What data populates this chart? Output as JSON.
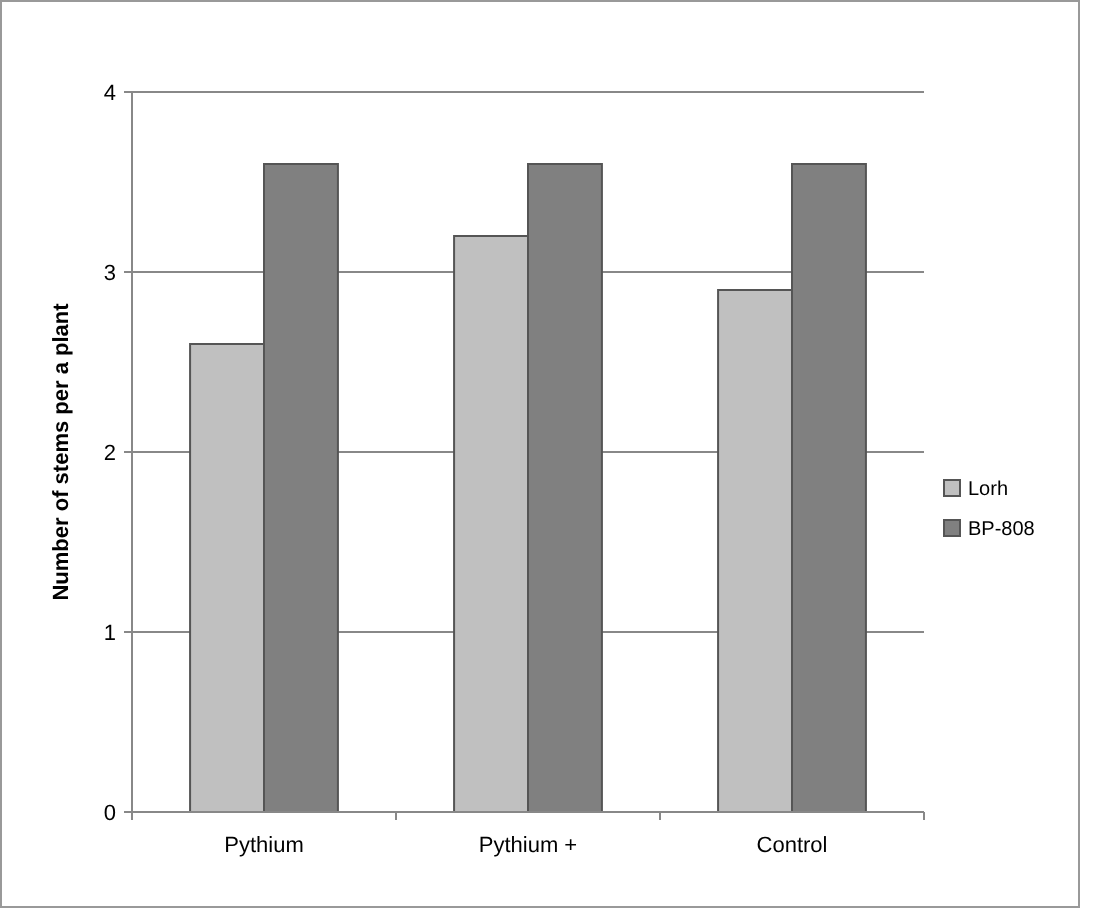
{
  "chart_data": {
    "type": "bar",
    "ylabel": "Number of stems per a plant",
    "categories": [
      "Pythium",
      "Pythium +",
      "Control"
    ],
    "series": [
      {
        "name": "Lorh",
        "color": "#c0c0c0",
        "values": [
          2.6,
          3.2,
          2.9
        ]
      },
      {
        "name": "BP-808",
        "color": "#808080",
        "values": [
          3.6,
          3.6,
          3.6
        ]
      }
    ],
    "ylim": [
      0,
      4
    ],
    "yticks": [
      0,
      1,
      2,
      3,
      4
    ],
    "grid": "y",
    "legend": "right"
  }
}
